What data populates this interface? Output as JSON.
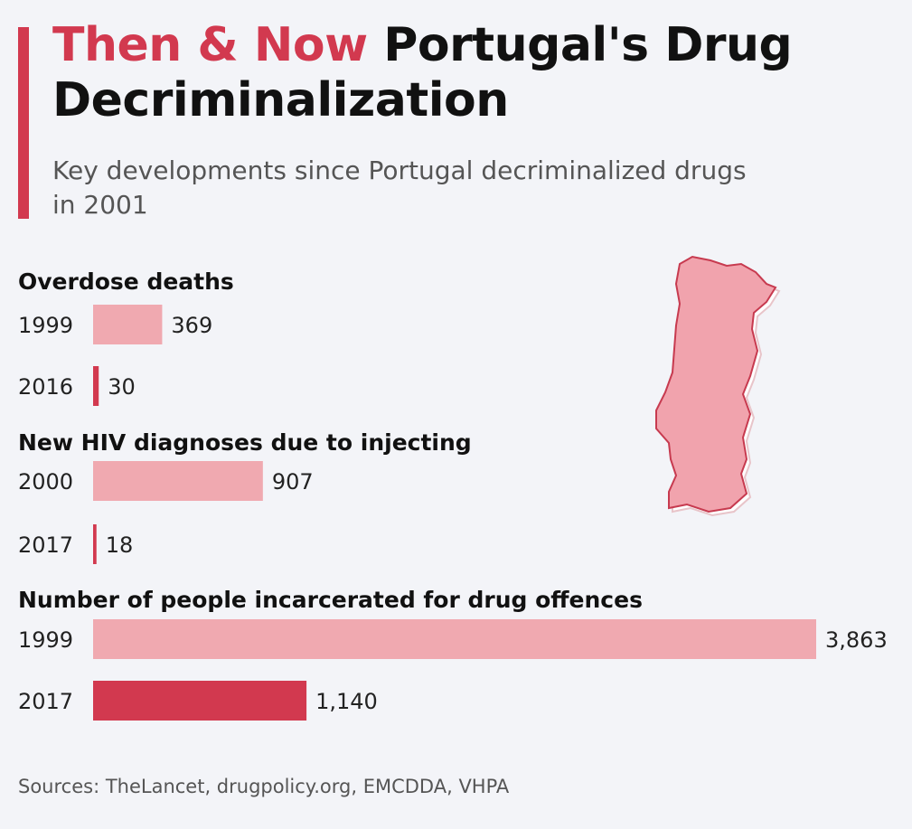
{
  "header": {
    "title_accent": "Then & Now",
    "title_main": "Portugal's Drug Decriminalization",
    "subtitle": "Key developments since Portugal decriminalized drugs in 2001"
  },
  "colors": {
    "accent": "#d2394f",
    "bar_then": "#f0a9b0",
    "bar_now": "#d2394f",
    "map_fill": "#f1a3ad",
    "map_stroke": "#c73a4f",
    "background": "#f3f4f8"
  },
  "chart_data": {
    "type": "bar",
    "orientation": "horizontal",
    "groups": [
      {
        "title": "Overdose deaths",
        "bars": [
          {
            "category": "1999",
            "value": 369,
            "label": "369",
            "series": "then"
          },
          {
            "category": "2016",
            "value": 30,
            "label": "30",
            "series": "now"
          }
        ]
      },
      {
        "title": "New HIV diagnoses due to injecting",
        "bars": [
          {
            "category": "2000",
            "value": 907,
            "label": "907",
            "series": "then"
          },
          {
            "category": "2017",
            "value": 18,
            "label": "18",
            "series": "now"
          }
        ]
      },
      {
        "title": "Number of people incarcerated for drug offences",
        "bars": [
          {
            "category": "1999",
            "value": 3863,
            "label": "3,863",
            "series": "then"
          },
          {
            "category": "2017",
            "value": 1140,
            "label": "1,140",
            "series": "now"
          }
        ]
      }
    ]
  },
  "map": {
    "icon": "portugal-map-icon"
  },
  "footer": {
    "sources": "Sources: TheLancet, drugpolicy.org, EMCDDA, VHPA"
  }
}
